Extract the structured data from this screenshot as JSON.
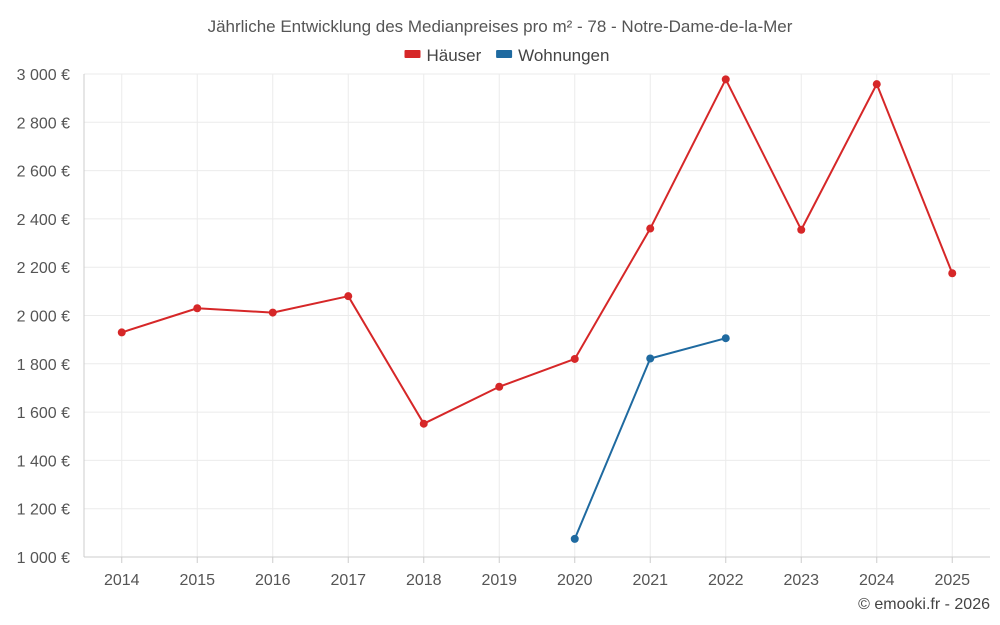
{
  "chart_data": {
    "type": "line",
    "title": "Jährliche Entwicklung des Medianpreises pro m² - 78 - Notre-Dame-de-la-Mer",
    "categories": [
      "2014",
      "2015",
      "2016",
      "2017",
      "2018",
      "2019",
      "2020",
      "2021",
      "2022",
      "2023",
      "2024",
      "2025"
    ],
    "series": [
      {
        "name": "Häuser",
        "color": "#d62728",
        "values": [
          1930,
          2030,
          2012,
          2080,
          1552,
          1705,
          1820,
          2360,
          2978,
          2355,
          2958,
          2175
        ]
      },
      {
        "name": "Wohnungen",
        "color": "#1f6aa0",
        "values": [
          null,
          null,
          null,
          null,
          null,
          null,
          1075,
          1822,
          1906,
          null,
          null,
          null
        ]
      }
    ],
    "ylim": [
      1000,
      3000
    ],
    "yticks": [
      1000,
      1200,
      1400,
      1600,
      1800,
      2000,
      2200,
      2400,
      2600,
      2800,
      3000
    ],
    "ytick_labels": [
      "1 000 €",
      "1 200 €",
      "1 400 €",
      "1 600 €",
      "1 800 €",
      "2 000 €",
      "2 200 €",
      "2 400 €",
      "2 600 €",
      "2 800 €",
      "3 000 €"
    ],
    "grid": true,
    "legend_position": "top-center"
  },
  "credit": "© emooki.fr - 2026"
}
